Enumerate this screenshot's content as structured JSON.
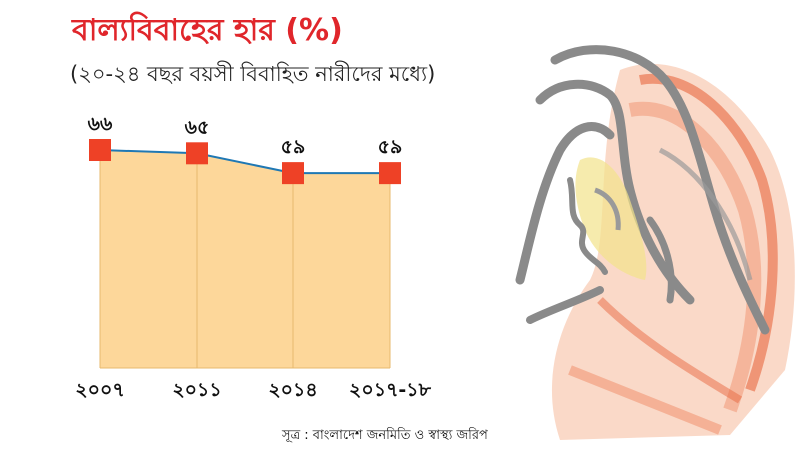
{
  "title": "বাল্যবিবাহের হার (%)",
  "subtitle": "(২০-২৪ বছর বয়সী বিবাহিত নারীদের মধ্যে)",
  "source": "সূত্র : বাংলাদেশ জনমিতি ও স্বাস্থ্য জরিপ",
  "colors": {
    "title": "#e0262b",
    "area_fill": "#fdd79a",
    "line": "#1f78b4",
    "marker": "#ee4126",
    "grid": "#e7b96e"
  },
  "chart_data": {
    "type": "area",
    "categories": [
      "২০০৭",
      "২০১১",
      "২০১৪",
      "২০১৭-১৮"
    ],
    "values": [
      66,
      65,
      59,
      59
    ],
    "value_labels": [
      "৬৬",
      "৬৫",
      "৫৯",
      "৫৯"
    ],
    "ylim": [
      0,
      66
    ],
    "grid": true,
    "legend": false,
    "xlabel": "",
    "ylabel": ""
  }
}
